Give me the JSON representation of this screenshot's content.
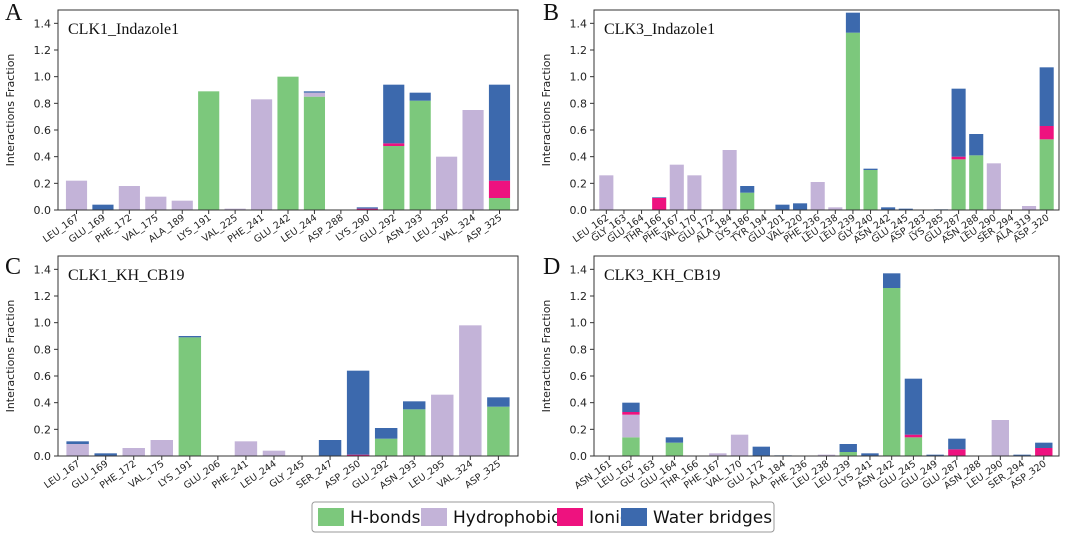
{
  "colors": {
    "H-bonds": "#7cc87c",
    "Hydrophobic": "#c3b3d8",
    "Ionic": "#ee127f",
    "Water bridges": "#3c69ad"
  },
  "legend": [
    "H-bonds",
    "Hydrophobic",
    "Ionic",
    "Water bridges"
  ],
  "chart_data": [
    {
      "type": "bar",
      "stacked": true,
      "panel_label": "A",
      "title": "CLK1_Indazole1",
      "ylabel": "Interactions Fraction",
      "ylim": [
        0,
        1.5
      ],
      "yticks": [
        "0.0",
        "0.2",
        "0.4",
        "0.6",
        "0.8",
        "1.0",
        "1.2",
        "1.4"
      ],
      "categories": [
        "LEU_167",
        "GLU_169",
        "PHE_172",
        "VAL_175",
        "ALA_189",
        "LYS_191",
        "VAL_225",
        "PHE_241",
        "GLU_242",
        "LEU_244",
        "ASP_288",
        "LYS_290",
        "GLU_292",
        "ASN_293",
        "LEU_295",
        "VAL_324",
        "ASP_325"
      ],
      "series": [
        {
          "name": "H-bonds",
          "values": [
            0,
            0,
            0,
            0,
            0,
            0.89,
            0,
            0,
            1.0,
            0.85,
            0,
            0,
            0.48,
            0.82,
            0,
            0,
            0.09
          ]
        },
        {
          "name": "Hydrophobic",
          "values": [
            0.22,
            0,
            0.18,
            0.1,
            0.07,
            0,
            0.01,
            0.83,
            0,
            0.03,
            0,
            0,
            0,
            0,
            0.4,
            0.75,
            0
          ]
        },
        {
          "name": "Ionic",
          "values": [
            0,
            0,
            0,
            0,
            0,
            0,
            0,
            0,
            0,
            0,
            0,
            0.01,
            0.02,
            0,
            0,
            0,
            0.13
          ]
        },
        {
          "name": "Water bridges",
          "values": [
            0,
            0.04,
            0,
            0,
            0,
            0,
            0,
            0,
            0,
            0.01,
            0,
            0.01,
            0.44,
            0.06,
            0,
            0,
            0.72
          ]
        }
      ]
    },
    {
      "type": "bar",
      "stacked": true,
      "panel_label": "B",
      "title": "CLK3_Indazole1",
      "ylabel": "Interactions Fraction",
      "ylim": [
        0,
        1.5
      ],
      "yticks": [
        "0.0",
        "0.2",
        "0.4",
        "0.6",
        "0.8",
        "1.0",
        "1.2",
        "1.4"
      ],
      "categories": [
        "LEU_162",
        "GLY_163",
        "GLU_164",
        "THR_166",
        "PHE_167",
        "VAL_170",
        "GLU_172",
        "ALA_184",
        "LYS_186",
        "TYR_194",
        "GLU_201",
        "VAL_220",
        "PHE_236",
        "LEU_238",
        "LEU_239",
        "GLY_240",
        "ASN_242",
        "GLU_245",
        "ASP_283",
        "LYS_285",
        "GLU_287",
        "ASN_288",
        "LEU_290",
        "SER_294",
        "ALA_319",
        "ASP_320"
      ],
      "series": [
        {
          "name": "H-bonds",
          "values": [
            0,
            0,
            0,
            0,
            0,
            0,
            0,
            0,
            0.13,
            0,
            0,
            0,
            0,
            0,
            1.33,
            0.3,
            0,
            0,
            0,
            0,
            0.38,
            0.41,
            0,
            0,
            0,
            0.53
          ]
        },
        {
          "name": "Hydrophobic",
          "values": [
            0.26,
            0,
            0,
            0,
            0.34,
            0.26,
            0,
            0.45,
            0,
            0,
            0,
            0,
            0.21,
            0.02,
            0,
            0,
            0,
            0,
            0,
            0,
            0,
            0,
            0.35,
            0,
            0.03,
            0
          ]
        },
        {
          "name": "Ionic",
          "values": [
            0,
            0,
            0,
            0.09,
            0,
            0,
            0,
            0,
            0,
            0,
            0,
            0,
            0,
            0,
            0,
            0,
            0,
            0,
            0,
            0,
            0.02,
            0,
            0,
            0,
            0,
            0.1
          ]
        },
        {
          "name": "Water bridges",
          "values": [
            0,
            0,
            0,
            0.005,
            0,
            0,
            0,
            0,
            0.05,
            0,
            0.04,
            0.05,
            0,
            0,
            0.15,
            0.01,
            0.02,
            0.01,
            0,
            0.005,
            0.51,
            0.16,
            0,
            0,
            0,
            0.44
          ]
        }
      ]
    },
    {
      "type": "bar",
      "stacked": true,
      "panel_label": "C",
      "title": "CLK1_KH_CB19",
      "ylabel": "Interactions Fraction",
      "ylim": [
        0,
        1.5
      ],
      "yticks": [
        "0.0",
        "0.2",
        "0.4",
        "0.6",
        "0.8",
        "1.0",
        "1.2",
        "1.4"
      ],
      "categories": [
        "LEU_167",
        "GLU_169",
        "PHE_172",
        "VAL_175",
        "LYS_191",
        "GLU_206",
        "PHE_241",
        "LEU_244",
        "GLY_245",
        "SER_247",
        "ASP_250",
        "GLU_292",
        "ASN_293",
        "LEU_295",
        "VAL_324",
        "ASP_325"
      ],
      "series": [
        {
          "name": "H-bonds",
          "values": [
            0,
            0,
            0,
            0,
            0.89,
            0,
            0,
            0,
            0,
            0,
            0,
            0.13,
            0.35,
            0,
            0,
            0.37
          ]
        },
        {
          "name": "Hydrophobic",
          "values": [
            0.09,
            0,
            0.06,
            0.12,
            0,
            0,
            0.11,
            0.04,
            0,
            0,
            0,
            0,
            0,
            0.46,
            0.98,
            0
          ]
        },
        {
          "name": "Ionic",
          "values": [
            0,
            0,
            0,
            0,
            0,
            0,
            0,
            0,
            0,
            0,
            0.01,
            0,
            0,
            0,
            0,
            0
          ]
        },
        {
          "name": "Water bridges",
          "values": [
            0.02,
            0.02,
            0,
            0,
            0.01,
            0,
            0,
            0,
            0,
            0.12,
            0.63,
            0.08,
            0.06,
            0,
            0,
            0.07
          ]
        }
      ]
    },
    {
      "type": "bar",
      "stacked": true,
      "panel_label": "D",
      "title": "CLK3_KH_CB19",
      "ylabel": "Interactions Fraction",
      "ylim": [
        0,
        1.5
      ],
      "yticks": [
        "0.0",
        "0.2",
        "0.4",
        "0.6",
        "0.8",
        "1.0",
        "1.2",
        "1.4"
      ],
      "categories": [
        "ASN_161",
        "LEU_162",
        "GLY_163",
        "GLU_164",
        "THR_166",
        "PHE_167",
        "VAL_170",
        "GLU_172",
        "ALA_184",
        "PHE_236",
        "LEU_238",
        "LEU_239",
        "LYS_241",
        "ASN_242",
        "GLU_245",
        "GLU_249",
        "GLU_287",
        "ASN_288",
        "LEU_290",
        "SER_294",
        "ASP_320"
      ],
      "series": [
        {
          "name": "H-bonds",
          "values": [
            0,
            0.14,
            0,
            0.1,
            0,
            0,
            0,
            0,
            0,
            0,
            0,
            0.03,
            0,
            1.26,
            0.14,
            0,
            0,
            0,
            0,
            0,
            0
          ]
        },
        {
          "name": "Hydrophobic",
          "values": [
            0,
            0.17,
            0,
            0,
            0,
            0.02,
            0.16,
            0,
            0,
            0,
            0.01,
            0,
            0,
            0,
            0,
            0,
            0,
            0,
            0.27,
            0,
            0
          ]
        },
        {
          "name": "Ionic",
          "values": [
            0,
            0.02,
            0,
            0,
            0,
            0,
            0,
            0,
            0,
            0,
            0,
            0,
            0,
            0,
            0.02,
            0,
            0.05,
            0,
            0,
            0,
            0.06
          ]
        },
        {
          "name": "Water bridges",
          "values": [
            0,
            0.07,
            0,
            0.04,
            0,
            0,
            0,
            0.07,
            0.005,
            0,
            0,
            0.06,
            0.02,
            0.11,
            0.42,
            0.01,
            0.08,
            0,
            0,
            0.01,
            0.04
          ]
        }
      ]
    }
  ]
}
